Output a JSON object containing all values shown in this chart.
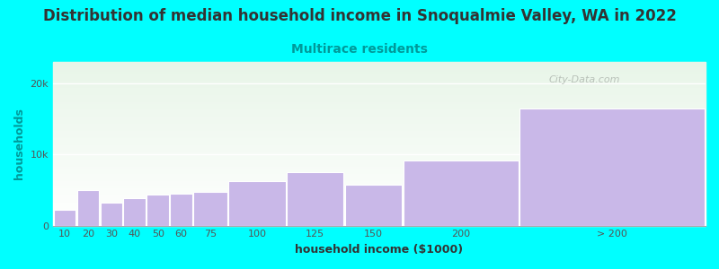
{
  "title": "Distribution of median household income in Snoqualmie Valley, WA in 2022",
  "subtitle": "Multirace residents",
  "xlabel": "household income ($1000)",
  "ylabel": "households",
  "background_color": "#00FFFF",
  "bar_color": "#c9b8e8",
  "bar_edge_color": "#ffffff",
  "categories": [
    "10",
    "20",
    "30",
    "40",
    "50",
    "60",
    "75",
    "100",
    "125",
    "150",
    "200",
    "> 200"
  ],
  "values": [
    2200,
    5000,
    3200,
    3800,
    4300,
    4500,
    4700,
    6200,
    7500,
    5800,
    9200,
    16500
  ],
  "left_edges": [
    0,
    10,
    20,
    30,
    40,
    50,
    60,
    75,
    100,
    125,
    150,
    200
  ],
  "widths": [
    10,
    10,
    10,
    10,
    10,
    10,
    15,
    25,
    25,
    25,
    50,
    80
  ],
  "yticks": [
    0,
    10000,
    20000
  ],
  "ytick_labels": [
    "0",
    "10k",
    "20k"
  ],
  "ylim": [
    0,
    23000
  ],
  "xlim": [
    0,
    280
  ],
  "title_fontsize": 12,
  "subtitle_fontsize": 10,
  "axis_label_fontsize": 9,
  "tick_fontsize": 8,
  "watermark_text": "City-Data.com",
  "watermark_color": "#b0b8b0",
  "title_color": "#333333",
  "subtitle_color": "#009999",
  "ylabel_color": "#009999",
  "xlabel_color": "#333333"
}
